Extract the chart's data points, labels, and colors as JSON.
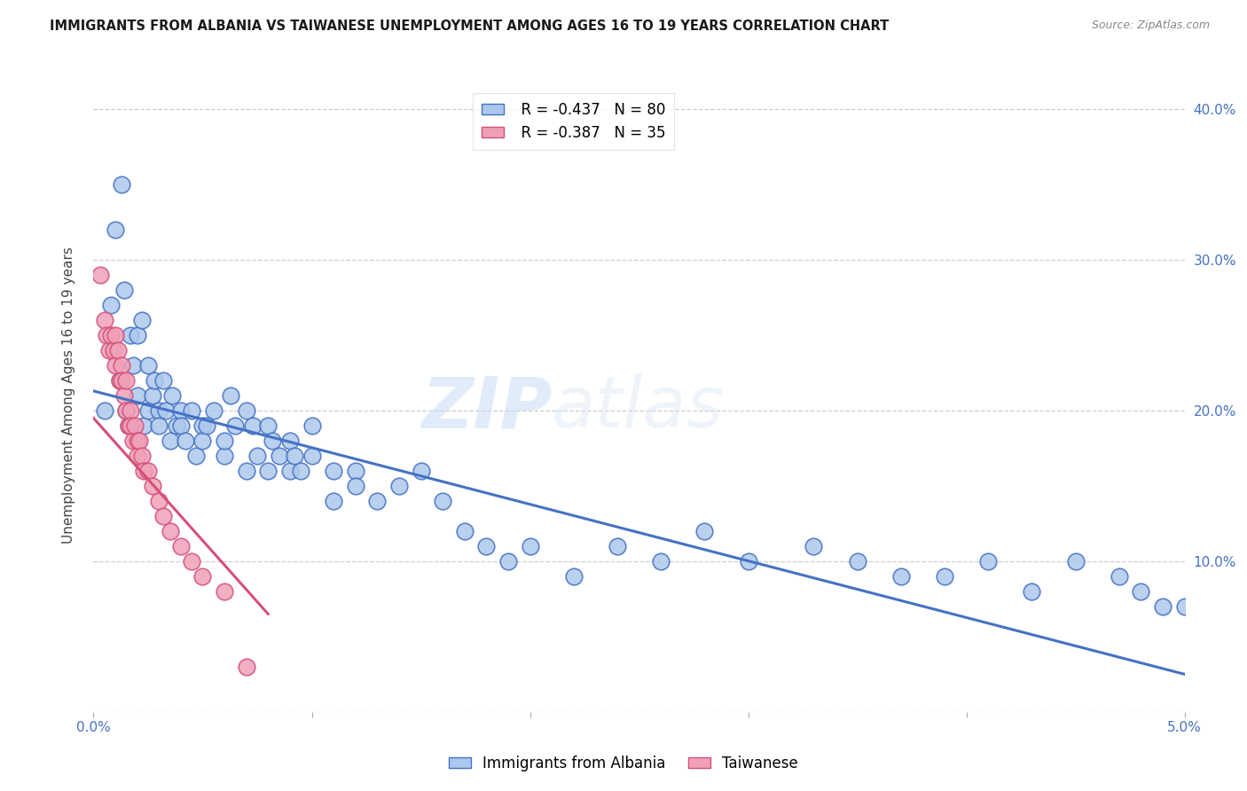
{
  "title": "IMMIGRANTS FROM ALBANIA VS TAIWANESE UNEMPLOYMENT AMONG AGES 16 TO 19 YEARS CORRELATION CHART",
  "source": "Source: ZipAtlas.com",
  "ylabel": "Unemployment Among Ages 16 to 19 years",
  "xmin": 0.0,
  "xmax": 0.05,
  "ymin": 0.0,
  "ymax": 0.42,
  "yticks": [
    0.0,
    0.1,
    0.2,
    0.3,
    0.4
  ],
  "ytick_labels": [
    "",
    "10.0%",
    "20.0%",
    "30.0%",
    "40.0%"
  ],
  "legend1_R": "-0.437",
  "legend1_N": "80",
  "legend2_R": "-0.387",
  "legend2_N": "35",
  "color_blue": "#adc8ed",
  "color_blue_line": "#4472c4",
  "color_pink": "#f0a0b8",
  "color_pink_line": "#d4507a",
  "color_axis": "#4472c4",
  "watermark_zip": "ZIP",
  "watermark_atlas": "atlas",
  "albania_x": [
    0.0005,
    0.0008,
    0.001,
    0.0012,
    0.0013,
    0.0014,
    0.0015,
    0.0016,
    0.0017,
    0.0018,
    0.002,
    0.002,
    0.0022,
    0.0023,
    0.0025,
    0.0025,
    0.0027,
    0.0028,
    0.003,
    0.003,
    0.0032,
    0.0033,
    0.0035,
    0.0036,
    0.0038,
    0.004,
    0.004,
    0.0042,
    0.0045,
    0.0047,
    0.005,
    0.005,
    0.0052,
    0.0055,
    0.006,
    0.006,
    0.0063,
    0.0065,
    0.007,
    0.007,
    0.0073,
    0.0075,
    0.008,
    0.008,
    0.0082,
    0.0085,
    0.009,
    0.009,
    0.0092,
    0.0095,
    0.01,
    0.01,
    0.011,
    0.011,
    0.012,
    0.012,
    0.013,
    0.014,
    0.015,
    0.016,
    0.017,
    0.018,
    0.019,
    0.02,
    0.022,
    0.024,
    0.026,
    0.028,
    0.03,
    0.033,
    0.035,
    0.037,
    0.039,
    0.041,
    0.043,
    0.045,
    0.047,
    0.048,
    0.049,
    0.05
  ],
  "albania_y": [
    0.2,
    0.27,
    0.32,
    0.22,
    0.35,
    0.28,
    0.2,
    0.19,
    0.25,
    0.23,
    0.21,
    0.25,
    0.26,
    0.19,
    0.23,
    0.2,
    0.21,
    0.22,
    0.2,
    0.19,
    0.22,
    0.2,
    0.18,
    0.21,
    0.19,
    0.2,
    0.19,
    0.18,
    0.2,
    0.17,
    0.19,
    0.18,
    0.19,
    0.2,
    0.17,
    0.18,
    0.21,
    0.19,
    0.16,
    0.2,
    0.19,
    0.17,
    0.16,
    0.19,
    0.18,
    0.17,
    0.16,
    0.18,
    0.17,
    0.16,
    0.19,
    0.17,
    0.16,
    0.14,
    0.16,
    0.15,
    0.14,
    0.15,
    0.16,
    0.14,
    0.12,
    0.11,
    0.1,
    0.11,
    0.09,
    0.11,
    0.1,
    0.12,
    0.1,
    0.11,
    0.1,
    0.09,
    0.09,
    0.1,
    0.08,
    0.1,
    0.09,
    0.08,
    0.07,
    0.07
  ],
  "taiwan_x": [
    0.0003,
    0.0005,
    0.0006,
    0.0007,
    0.0008,
    0.0009,
    0.001,
    0.001,
    0.0011,
    0.0012,
    0.0013,
    0.0013,
    0.0014,
    0.0015,
    0.0015,
    0.0016,
    0.0017,
    0.0017,
    0.0018,
    0.0019,
    0.002,
    0.002,
    0.0021,
    0.0022,
    0.0023,
    0.0025,
    0.0027,
    0.003,
    0.0032,
    0.0035,
    0.004,
    0.0045,
    0.005,
    0.006,
    0.007
  ],
  "taiwan_y": [
    0.29,
    0.26,
    0.25,
    0.24,
    0.25,
    0.24,
    0.25,
    0.23,
    0.24,
    0.22,
    0.23,
    0.22,
    0.21,
    0.22,
    0.2,
    0.19,
    0.2,
    0.19,
    0.18,
    0.19,
    0.18,
    0.17,
    0.18,
    0.17,
    0.16,
    0.16,
    0.15,
    0.14,
    0.13,
    0.12,
    0.11,
    0.1,
    0.09,
    0.08,
    0.03
  ],
  "blue_line_x0": 0.0,
  "blue_line_x1": 0.05,
  "blue_line_y0": 0.213,
  "blue_line_y1": 0.025,
  "pink_line_x0": 0.0,
  "pink_line_x1": 0.008,
  "pink_line_y0": 0.195,
  "pink_line_y1": 0.065
}
